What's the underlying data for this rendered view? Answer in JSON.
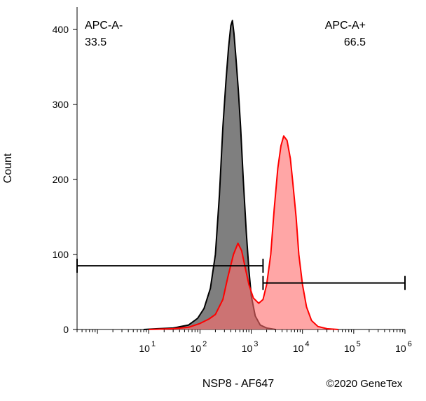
{
  "chart_data": {
    "type": "area",
    "xlabel": "NSP8 - AF647",
    "ylabel": "Count",
    "x_scale": "log",
    "xlim": [
      0.4,
      1000000
    ],
    "ylim": [
      0,
      430
    ],
    "x_ticks": [
      {
        "value": 10,
        "base": "10",
        "exp": "1"
      },
      {
        "value": 100,
        "base": "10",
        "exp": "2"
      },
      {
        "value": 1000,
        "base": "10",
        "exp": "3"
      },
      {
        "value": 10000,
        "base": "10",
        "exp": "4"
      },
      {
        "value": 100000,
        "base": "10",
        "exp": "5"
      },
      {
        "value": 1000000,
        "base": "10",
        "exp": "6"
      }
    ],
    "y_ticks": [
      {
        "value": 0,
        "label": "0"
      },
      {
        "value": 100,
        "label": "100"
      },
      {
        "value": 200,
        "label": "200"
      },
      {
        "value": 300,
        "label": "300"
      },
      {
        "value": 400,
        "label": "400"
      }
    ],
    "series": [
      {
        "color": "#000000",
        "fill": "#7f7f7f",
        "points": [
          [
            8,
            0
          ],
          [
            15,
            1
          ],
          [
            30,
            2
          ],
          [
            60,
            6
          ],
          [
            90,
            15
          ],
          [
            120,
            28
          ],
          [
            160,
            55
          ],
          [
            200,
            100
          ],
          [
            240,
            180
          ],
          [
            280,
            270
          ],
          [
            320,
            330
          ],
          [
            360,
            375
          ],
          [
            400,
            405
          ],
          [
            430,
            412
          ],
          [
            460,
            395
          ],
          [
            500,
            365
          ],
          [
            560,
            320
          ],
          [
            620,
            270
          ],
          [
            700,
            200
          ],
          [
            800,
            130
          ],
          [
            900,
            80
          ],
          [
            1000,
            45
          ],
          [
            1200,
            18
          ],
          [
            1500,
            6
          ],
          [
            2000,
            2
          ],
          [
            3000,
            0
          ]
        ]
      },
      {
        "color": "#ff0000",
        "fill": "#ff6b6b",
        "points": [
          [
            10,
            0
          ],
          [
            30,
            1
          ],
          [
            60,
            3
          ],
          [
            100,
            8
          ],
          [
            150,
            14
          ],
          [
            200,
            20
          ],
          [
            280,
            40
          ],
          [
            350,
            70
          ],
          [
            450,
            100
          ],
          [
            550,
            115
          ],
          [
            650,
            105
          ],
          [
            750,
            85
          ],
          [
            900,
            60
          ],
          [
            1100,
            42
          ],
          [
            1400,
            35
          ],
          [
            1700,
            40
          ],
          [
            2000,
            60
          ],
          [
            2400,
            100
          ],
          [
            2800,
            160
          ],
          [
            3300,
            215
          ],
          [
            3800,
            245
          ],
          [
            4300,
            258
          ],
          [
            5000,
            252
          ],
          [
            5800,
            228
          ],
          [
            6500,
            195
          ],
          [
            7500,
            150
          ],
          [
            8500,
            100
          ],
          [
            10000,
            60
          ],
          [
            12000,
            30
          ],
          [
            15000,
            12
          ],
          [
            20000,
            4
          ],
          [
            30000,
            1
          ],
          [
            50000,
            0
          ]
        ]
      }
    ],
    "gates": [
      {
        "label": "APC-A-",
        "value": "33.5",
        "x_range": [
          0.4,
          1700
        ],
        "y": 85
      },
      {
        "label": "APC-A+",
        "value": "66.5",
        "x_range": [
          1700,
          1000000
        ],
        "y": 62
      }
    ]
  },
  "copyright": "©2020 GeneTex"
}
